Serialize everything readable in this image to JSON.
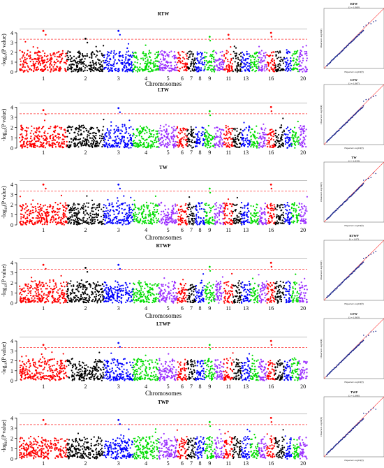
{
  "colors": {
    "chromosome_cycle": [
      "#ff0000",
      "#000000",
      "#0000ff",
      "#00dd00",
      "#9b30ff"
    ],
    "threshold_line": "#ff3333",
    "qq_points": "#1a2a8f",
    "qq_reference": "#ff3333"
  },
  "common": {
    "x_axis_label": "Chromosomes",
    "y_axis_label_html": "-log10(P value)",
    "qq_x_label": "Expected -log10(P)",
    "qq_y_label": "Observed -log10(P)",
    "chromosome_ticks": [
      "1",
      "2",
      "3",
      "4",
      "5",
      "6",
      "7",
      "8",
      "9",
      "11",
      "13",
      "16",
      "20"
    ],
    "chromosome_count": 20,
    "significance_threshold": 3.35,
    "suggestive_threshold": 4.4
  },
  "chart_data": [
    {
      "type": "scatter",
      "kind": "manhattan",
      "title": "RTW",
      "xlabel": "Chromosomes",
      "ylabel": "-log10(P value)",
      "ylim": [
        0,
        4.5
      ],
      "yticks": [
        0,
        1,
        2,
        3,
        4
      ],
      "show_xlabel": true,
      "peaks": [
        {
          "chromosome": 1,
          "value": 4.2
        },
        {
          "chromosome": 2,
          "value": 3.4
        },
        {
          "chromosome": 3,
          "value": 4.2
        },
        {
          "chromosome": 9,
          "value": 3.6
        },
        {
          "chromosome": 11,
          "value": 3.8
        },
        {
          "chromosome": 16,
          "value": 4.0
        }
      ]
    },
    {
      "type": "scatter",
      "kind": "manhattan",
      "title": "LTW",
      "xlabel": "Chromosomes",
      "ylabel": "-log10(P value)",
      "ylim": [
        0,
        4.5
      ],
      "yticks": [
        0,
        1,
        2,
        3,
        4
      ],
      "show_xlabel": false,
      "peaks": [
        {
          "chromosome": 1,
          "value": 3.7
        },
        {
          "chromosome": 3,
          "value": 3.9
        },
        {
          "chromosome": 9,
          "value": 3.6
        },
        {
          "chromosome": 16,
          "value": 4.0
        }
      ]
    },
    {
      "type": "scatter",
      "kind": "manhattan",
      "title": "TW",
      "xlabel": "Chromosomes",
      "ylabel": "-log10(P value)",
      "ylim": [
        0,
        4.5
      ],
      "yticks": [
        0,
        1,
        2,
        3,
        4
      ],
      "show_xlabel": true,
      "peaks": [
        {
          "chromosome": 1,
          "value": 4.0
        },
        {
          "chromosome": 3,
          "value": 4.0
        },
        {
          "chromosome": 9,
          "value": 3.6
        },
        {
          "chromosome": 16,
          "value": 4.0
        }
      ]
    },
    {
      "type": "scatter",
      "kind": "manhattan",
      "title": "RTWP",
      "xlabel": "Chromosomes",
      "ylabel": "-log10(P value)",
      "ylim": [
        0,
        4.5
      ],
      "yticks": [
        0,
        1,
        2,
        3,
        4
      ],
      "show_xlabel": true,
      "peaks": [
        {
          "chromosome": 1,
          "value": 3.8
        },
        {
          "chromosome": 2,
          "value": 3.5
        },
        {
          "chromosome": 3,
          "value": 3.8
        },
        {
          "chromosome": 9,
          "value": 3.6
        },
        {
          "chromosome": 16,
          "value": 4.0
        }
      ]
    },
    {
      "type": "scatter",
      "kind": "manhattan",
      "title": "LTWP",
      "xlabel": "Chromosomes",
      "ylabel": "-log10(P value)",
      "ylim": [
        0,
        4.5
      ],
      "yticks": [
        0,
        1,
        2,
        3,
        4
      ],
      "show_xlabel": true,
      "peaks": [
        {
          "chromosome": 1,
          "value": 3.6
        },
        {
          "chromosome": 3,
          "value": 3.8
        },
        {
          "chromosome": 9,
          "value": 3.6
        },
        {
          "chromosome": 16,
          "value": 4.0
        }
      ]
    },
    {
      "type": "scatter",
      "kind": "manhattan",
      "title": "TWP",
      "xlabel": "Chromosomes",
      "ylabel": "-log10(P value)",
      "ylim": [
        0,
        4.5
      ],
      "yticks": [
        0,
        1,
        2,
        3,
        4
      ],
      "show_xlabel": true,
      "peaks": [
        {
          "chromosome": 1,
          "value": 3.8
        },
        {
          "chromosome": 3,
          "value": 3.8
        },
        {
          "chromosome": 9,
          "value": 3.6
        },
        {
          "chromosome": 16,
          "value": 4.0
        }
      ]
    },
    {
      "type": "scatter",
      "kind": "qq",
      "title": "RTW",
      "subtitle": "(λ = 1.060)"
    },
    {
      "type": "scatter",
      "kind": "qq",
      "title": "LTW",
      "subtitle": "(λ = 1.067)"
    },
    {
      "type": "scatter",
      "kind": "qq",
      "title": "TW",
      "subtitle": "(λ = 1.044)"
    },
    {
      "type": "scatter",
      "kind": "qq",
      "title": "RTWP",
      "subtitle": "(λ = 1.07)"
    },
    {
      "type": "scatter",
      "kind": "qq",
      "title": "LTW",
      "subtitle": "(λ = 1.063)"
    },
    {
      "type": "scatter",
      "kind": "qq",
      "title": "TWP",
      "subtitle": "(λ = 1.086)"
    }
  ]
}
